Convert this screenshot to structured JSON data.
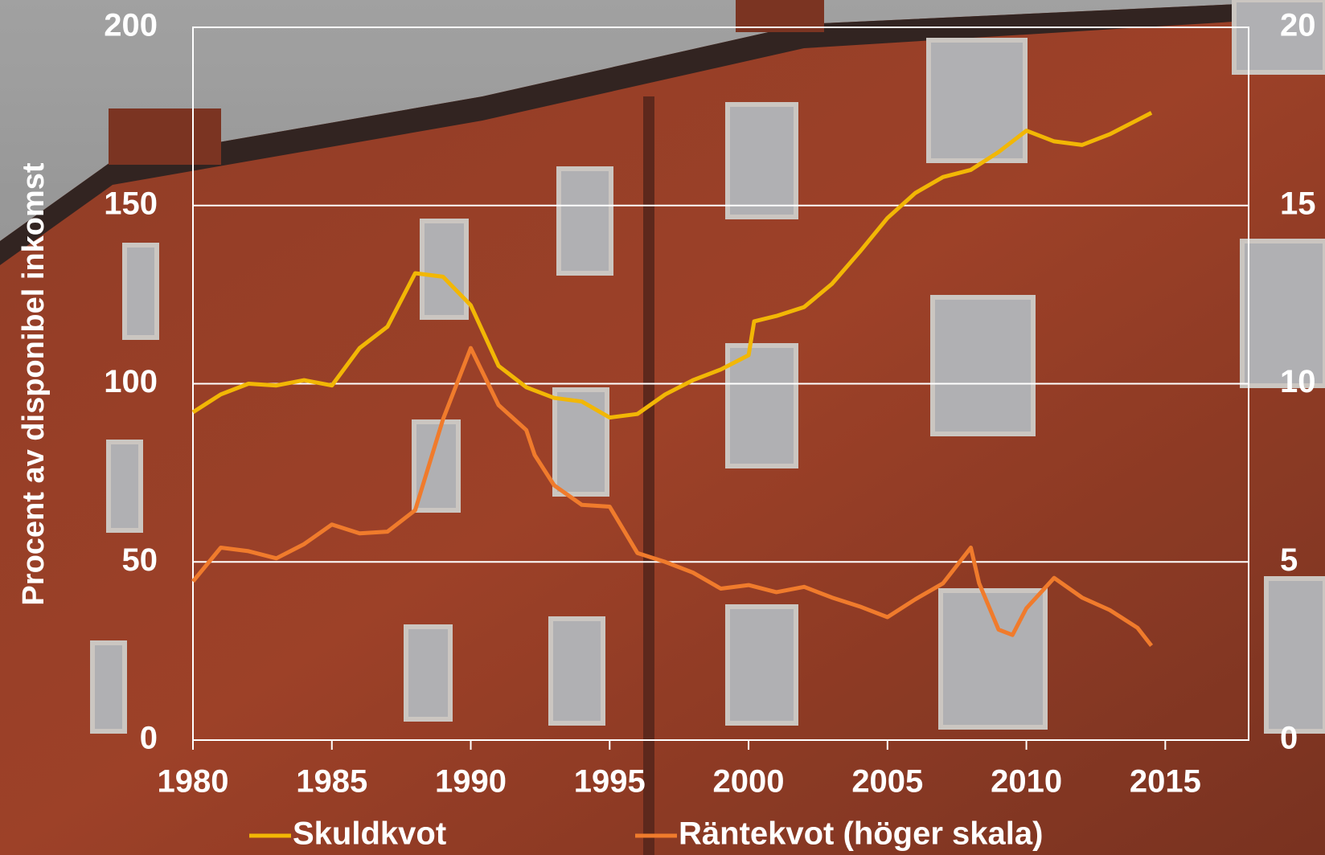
{
  "chart_data": {
    "type": "line",
    "y_label": "Procent av disponibel inkomst",
    "xlim": [
      1980,
      2018
    ],
    "xticks": [
      1980,
      1985,
      1990,
      1995,
      2000,
      2005,
      2010,
      2015
    ],
    "ylim": [
      0,
      200
    ],
    "yticks": [
      0,
      50,
      100,
      150,
      200
    ],
    "y2lim": [
      0,
      20
    ],
    "y2ticks": [
      0,
      5,
      10,
      15,
      20
    ],
    "grid": true,
    "series": [
      {
        "name": "Skuldkvot",
        "color": "#f2b705",
        "x": [
          1980,
          1981,
          1982,
          1983,
          1984,
          1985,
          1986,
          1987,
          1988,
          1989,
          1990,
          1991,
          1992,
          1993,
          1994,
          1995,
          1996,
          1997,
          1998,
          1999,
          2000,
          2000.2,
          2001,
          2002,
          2003,
          2004,
          2005,
          2006,
          2007,
          2008,
          2009,
          2010,
          2011,
          2012,
          2013,
          2014,
          2014.5
        ],
        "values": [
          92,
          97,
          100,
          99.5,
          101,
          99.5,
          110,
          116,
          131,
          130,
          122,
          105,
          99,
          96,
          95,
          90.5,
          91.5,
          97,
          101,
          104,
          108,
          117.5,
          119,
          121.5,
          128,
          137,
          146.5,
          153.5,
          158,
          160,
          165,
          171,
          168,
          167,
          170,
          174,
          176
        ]
      },
      {
        "name": "Räntekvot (höger skala)",
        "color": "#f07b2c",
        "axis": "y2",
        "x": [
          1980,
          1981,
          1982,
          1983,
          1984,
          1985,
          1986,
          1987,
          1988,
          1989,
          1990,
          1991,
          1992,
          1992.3,
          1993,
          1994,
          1995,
          1996,
          1997,
          1998,
          1999,
          2000,
          2001,
          2002,
          2003,
          2004,
          2005,
          2006,
          2007,
          2008,
          2008.3,
          2009,
          2009.5,
          2010,
          2011,
          2012,
          2013,
          2014,
          2014.5
        ],
        "values": [
          4.45,
          5.4,
          5.3,
          5.1,
          5.5,
          6.05,
          5.8,
          5.85,
          6.45,
          9.0,
          11.0,
          9.4,
          8.7,
          8.0,
          7.15,
          6.6,
          6.55,
          5.25,
          5.0,
          4.7,
          4.25,
          4.35,
          4.15,
          4.3,
          4.0,
          3.75,
          3.45,
          3.95,
          4.4,
          5.4,
          4.4,
          3.1,
          2.95,
          3.7,
          4.55,
          4.0,
          3.65,
          3.15,
          2.65
        ]
      }
    ]
  }
}
